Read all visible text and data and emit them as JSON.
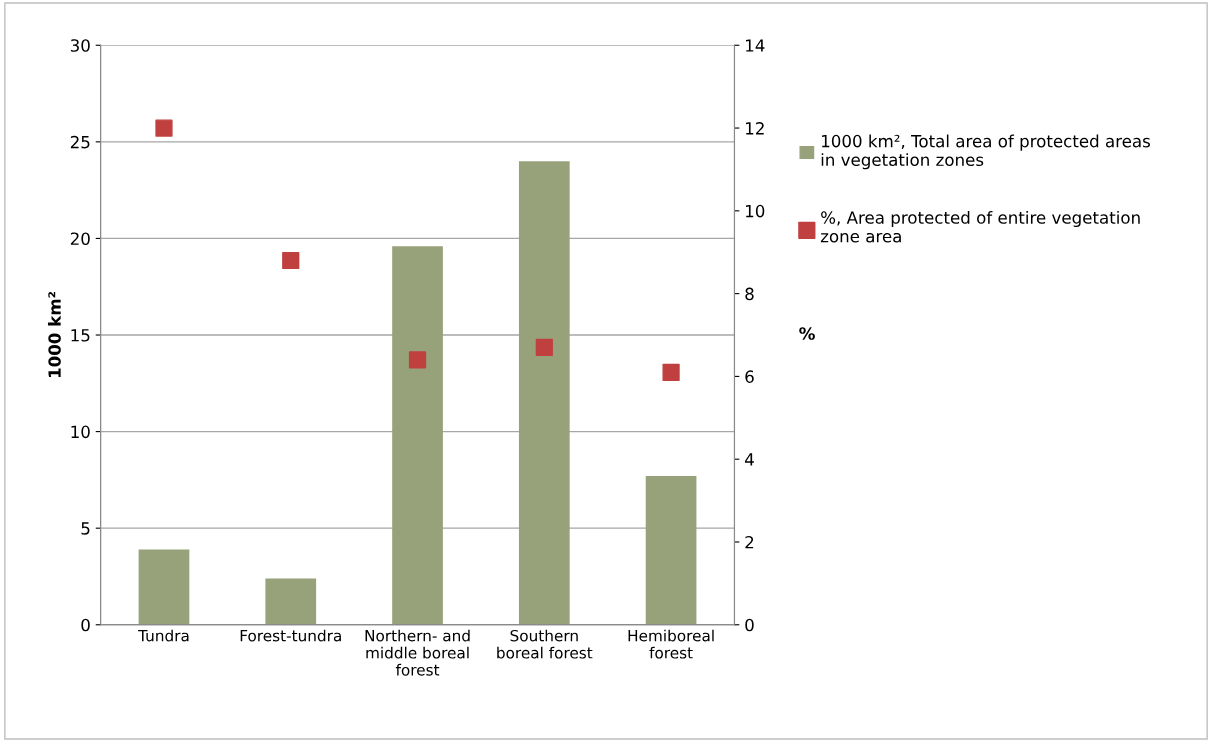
{
  "chart_data": {
    "type": "bar",
    "categories": [
      "Tundra",
      "Forest-tundra",
      "Northern- and\nmiddle boreal\nforest",
      "Southern\nboreal forest",
      "Hemiboreal\nforest"
    ],
    "series": [
      {
        "name": "1000 km², Total area of protected areas\nin vegetation zones",
        "color": "#98a27a",
        "values": [
          3.9,
          2.4,
          19.6,
          24.0,
          7.7
        ]
      },
      {
        "name": "%, Area protected of entire vegetation\nzone area",
        "type": "scatter",
        "axis": "y2",
        "marker": "square",
        "color": "#c0403f",
        "values": [
          12.0,
          8.8,
          6.4,
          6.7,
          6.1
        ]
      }
    ],
    "ylabel": "1000 km²",
    "y2label": "%",
    "ylim": [
      0,
      30
    ],
    "yticks": [
      0,
      5,
      10,
      15,
      20,
      25,
      30
    ],
    "y2lim": [
      0,
      14
    ],
    "y2ticks": [
      0,
      2,
      4,
      6,
      8,
      10,
      12,
      14
    ],
    "grid": "y",
    "legend": "right"
  }
}
